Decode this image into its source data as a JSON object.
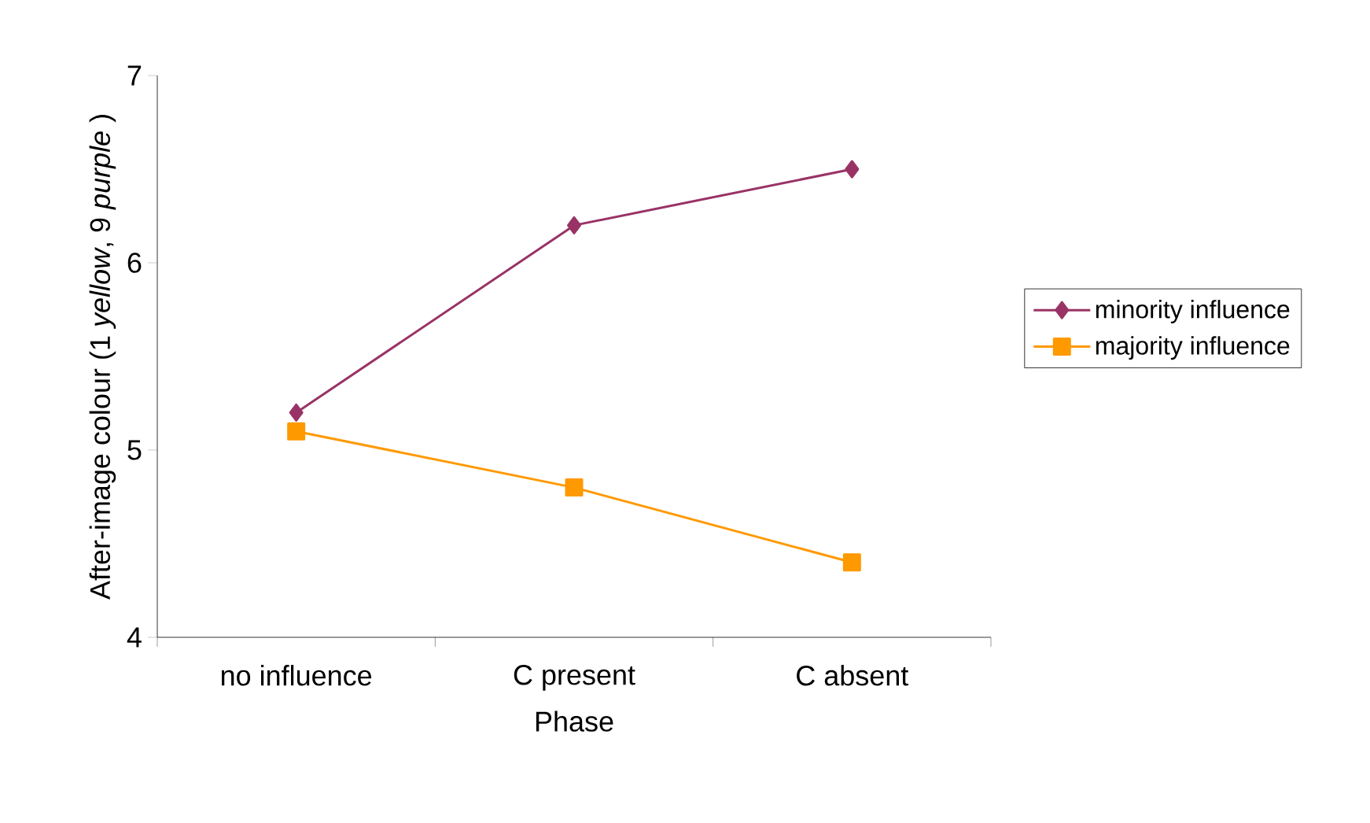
{
  "chart_data": {
    "type": "line",
    "xlabel": "Phase",
    "ylabel": "After-image colour (1 *yellow*, 9 *purple* )",
    "categories": [
      "no influence",
      "C present",
      "C absent"
    ],
    "series": [
      {
        "name": "minority influence",
        "color": "#993366",
        "marker": "diamond",
        "values": [
          5.2,
          6.2,
          6.5
        ]
      },
      {
        "name": "majority influence",
        "color": "#ff9900",
        "marker": "square",
        "values": [
          5.1,
          4.8,
          4.4
        ]
      }
    ],
    "ylim": [
      4,
      7
    ],
    "yticks": [
      4,
      5,
      6,
      7
    ],
    "grid": false,
    "legend": "right",
    "line_style": "solid"
  }
}
